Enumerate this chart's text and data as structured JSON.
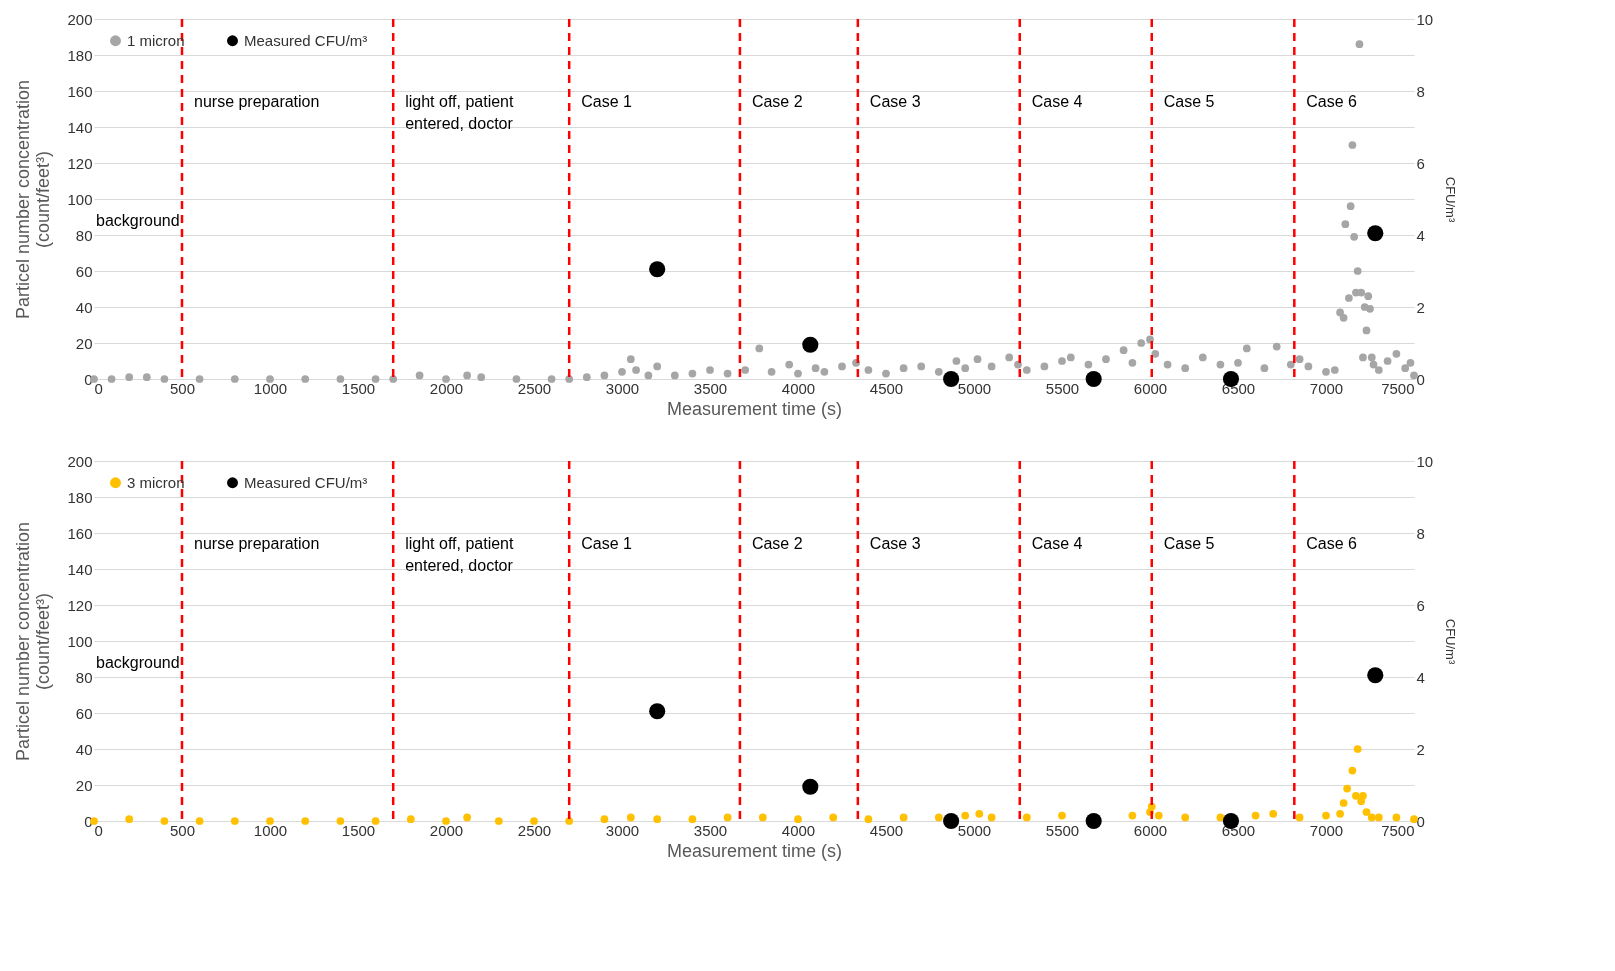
{
  "chart_data": [
    {
      "type": "scatter",
      "xlabel": "Measurement time (s)",
      "ylabel": "Particel number concentration (count/feet³)",
      "y2label": "CFU/m³",
      "xlim": [
        0,
        7500
      ],
      "xticks": [
        0,
        500,
        1000,
        1500,
        2000,
        2500,
        3000,
        3500,
        4000,
        4500,
        5000,
        5500,
        6000,
        6500,
        7000,
        7500
      ],
      "ylim": [
        0,
        200
      ],
      "yticks": [
        0,
        20,
        40,
        60,
        80,
        100,
        120,
        140,
        160,
        180,
        200
      ],
      "y2lim": [
        0,
        10
      ],
      "y2ticks": [
        0,
        2,
        4,
        6,
        8,
        10
      ],
      "grid": "y",
      "legend": "top left",
      "marker": "circle",
      "annotations": [
        "background"
      ],
      "ref_lines": [
        {
          "axis": "x",
          "value": 500,
          "label": "nurse preparation",
          "color": "#ff0000",
          "line_style": "dashed"
        },
        {
          "axis": "x",
          "value": 1700,
          "label": "light off, patient entered, doctor",
          "color": "#ff0000",
          "line_style": "dashed"
        },
        {
          "axis": "x",
          "value": 2700,
          "label": "Case 1",
          "color": "#ff0000",
          "line_style": "dashed"
        },
        {
          "axis": "x",
          "value": 3670,
          "label": "Case 2",
          "color": "#ff0000",
          "line_style": "dashed"
        },
        {
          "axis": "x",
          "value": 4340,
          "label": "Case 3",
          "color": "#ff0000",
          "line_style": "dashed"
        },
        {
          "axis": "x",
          "value": 5260,
          "label": "Case 4",
          "color": "#ff0000",
          "line_style": "dashed"
        },
        {
          "axis": "x",
          "value": 6010,
          "label": "Case 5",
          "color": "#ff0000",
          "line_style": "dashed"
        },
        {
          "axis": "x",
          "value": 6820,
          "label": "Case 6",
          "color": "#ff0000",
          "line_style": "dashed"
        }
      ],
      "series": [
        {
          "name": "1 micron",
          "color": "#a6a6a6",
          "x": [
            0,
            100,
            200,
            300,
            400,
            600,
            800,
            1000,
            1200,
            1400,
            1600,
            1700,
            1850,
            2000,
            2120,
            2200,
            2400,
            2600,
            2700,
            2800,
            2900,
            3000,
            3050,
            3080,
            3150,
            3200,
            3300,
            3400,
            3500,
            3600,
            3700,
            3780,
            3850,
            3950,
            4000,
            4100,
            4150,
            4250,
            4330,
            4400,
            4500,
            4600,
            4700,
            4800,
            4900,
            4950,
            5020,
            5100,
            5200,
            5250,
            5300,
            5400,
            5500,
            5550,
            5650,
            5750,
            5850,
            5900,
            5950,
            6000,
            6030,
            6100,
            6200,
            6300,
            6400,
            6500,
            6550,
            6650,
            6720,
            6800,
            6850,
            6900,
            7000,
            7050,
            7080,
            7100,
            7110,
            7130,
            7140,
            7150,
            7160,
            7170,
            7180,
            7190,
            7200,
            7210,
            7220,
            7230,
            7240,
            7250,
            7260,
            7270,
            7300,
            7350,
            7400,
            7450,
            7480,
            7500
          ],
          "values": [
            0,
            0,
            1,
            1,
            0,
            0,
            0,
            0,
            0,
            0,
            0,
            0,
            2,
            0,
            2,
            1,
            0,
            0,
            0,
            1,
            2,
            4,
            11,
            5,
            2,
            7,
            2,
            3,
            5,
            3,
            5,
            17,
            4,
            8,
            3,
            6,
            4,
            7,
            9,
            5,
            3,
            6,
            7,
            4,
            10,
            6,
            11,
            7,
            12,
            8,
            5,
            7,
            10,
            12,
            8,
            11,
            16,
            9,
            20,
            22,
            14,
            8,
            6,
            12,
            8,
            9,
            17,
            6,
            18,
            8,
            11,
            7,
            4,
            5,
            37,
            34,
            86,
            45,
            96,
            130,
            79,
            48,
            60,
            186,
            48,
            12,
            40,
            27,
            46,
            39,
            12,
            8,
            5,
            10,
            14,
            6,
            9,
            2
          ]
        },
        {
          "name": "Measured CFU/m³",
          "color": "#000000",
          "axis": "y2",
          "x": [
            3200,
            4070,
            4870,
            5680,
            6460,
            7280
          ],
          "values": [
            3.05,
            0.95,
            0,
            0,
            0,
            4.05
          ]
        }
      ]
    },
    {
      "type": "scatter",
      "xlabel": "Measurement time (s)",
      "ylabel": "Particel number concentration (count/feet³)",
      "y2label": "CFU/m³",
      "xlim": [
        0,
        7500
      ],
      "xticks": [
        0,
        500,
        1000,
        1500,
        2000,
        2500,
        3000,
        3500,
        4000,
        4500,
        5000,
        5500,
        6000,
        6500,
        7000,
        7500
      ],
      "ylim": [
        0,
        200
      ],
      "yticks": [
        0,
        20,
        40,
        60,
        80,
        100,
        120,
        140,
        160,
        180,
        200
      ],
      "y2lim": [
        0,
        10
      ],
      "y2ticks": [
        0,
        2,
        4,
        6,
        8,
        10
      ],
      "grid": "y",
      "legend": "top left",
      "marker": "circle",
      "annotations": [
        "background"
      ],
      "ref_lines": [
        {
          "axis": "x",
          "value": 500,
          "label": "nurse preparation",
          "color": "#ff0000",
          "line_style": "dashed"
        },
        {
          "axis": "x",
          "value": 1700,
          "label": "light off, patient entered, doctor",
          "color": "#ff0000",
          "line_style": "dashed"
        },
        {
          "axis": "x",
          "value": 2700,
          "label": "Case 1",
          "color": "#ff0000",
          "line_style": "dashed"
        },
        {
          "axis": "x",
          "value": 3670,
          "label": "Case 2",
          "color": "#ff0000",
          "line_style": "dashed"
        },
        {
          "axis": "x",
          "value": 4340,
          "label": "Case 3",
          "color": "#ff0000",
          "line_style": "dashed"
        },
        {
          "axis": "x",
          "value": 5260,
          "label": "Case 4",
          "color": "#ff0000",
          "line_style": "dashed"
        },
        {
          "axis": "x",
          "value": 6010,
          "label": "Case 5",
          "color": "#ff0000",
          "line_style": "dashed"
        },
        {
          "axis": "x",
          "value": 6820,
          "label": "Case 6",
          "color": "#ff0000",
          "line_style": "dashed"
        }
      ],
      "series": [
        {
          "name": "3 micron",
          "color": "#ffc000",
          "x": [
            0,
            200,
            400,
            600,
            800,
            1000,
            1200,
            1400,
            1600,
            1800,
            2000,
            2120,
            2300,
            2500,
            2700,
            2900,
            3050,
            3200,
            3400,
            3600,
            3800,
            4000,
            4200,
            4400,
            4600,
            4800,
            4950,
            5030,
            5100,
            5300,
            5500,
            5700,
            5900,
            6000,
            6010,
            6050,
            6200,
            6400,
            6600,
            6700,
            6850,
            7000,
            7080,
            7100,
            7120,
            7150,
            7170,
            7180,
            7200,
            7210,
            7230,
            7260,
            7300,
            7400,
            7500
          ],
          "values": [
            0,
            1,
            0,
            0,
            0,
            0,
            0,
            0,
            0,
            1,
            0,
            2,
            0,
            0,
            0,
            1,
            2,
            1,
            1,
            2,
            2,
            1,
            2,
            1,
            2,
            2,
            3,
            4,
            2,
            2,
            3,
            null,
            3,
            5,
            8,
            3,
            2,
            2,
            3,
            4,
            2,
            3,
            4,
            10,
            18,
            28,
            14,
            40,
            11,
            14,
            5,
            2,
            2,
            2,
            1
          ]
        },
        {
          "name": "Measured CFU/m³",
          "color": "#000000",
          "axis": "y2",
          "x": [
            3200,
            4070,
            4870,
            5680,
            6460,
            7280
          ],
          "values": [
            3.05,
            0.95,
            0,
            0,
            0,
            4.05
          ]
        }
      ]
    }
  ]
}
